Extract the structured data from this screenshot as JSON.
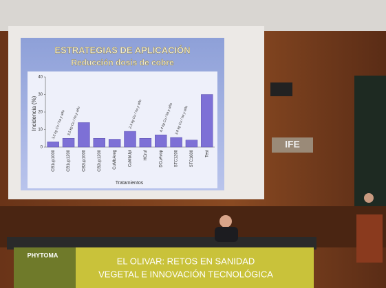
{
  "chart_data": {
    "type": "bar",
    "title": "ESTRATEGIAS DE APLICACIÓN",
    "subtitle": "Reducción dosis de cobre",
    "y_label": "Incidencia (%)",
    "x_label": "Tratamientos",
    "categories": [
      "CB1up1000",
      "CB1up1200",
      "CB2up1000",
      "CB2up1200",
      "CuMbAreg",
      "CuMbUpl",
      "HCruf",
      "DCuAvop",
      "STC1200",
      "STC1600",
      "Test"
    ],
    "values": [
      3,
      5,
      14,
      5,
      4.5,
      9,
      5,
      7,
      5.5,
      4,
      30
    ],
    "color": "#7d70d6",
    "ylim": [
      0,
      40
    ],
    "yticks": [
      0,
      10,
      20,
      30,
      40
    ],
    "annotations": [
      "3,5 kg Cu / ha y año",
      "3,5 kg Cu / ha y año",
      "2,3 kg Cu / ha y año",
      "4,4 kg Cu / ha y año",
      "3,8 kg Cu / ha y año"
    ]
  },
  "venue_sign": "IFE",
  "banner": {
    "logo": "PHYTOMA",
    "line1": "EL OLIVAR: RETOS EN SANIDAD",
    "line2": "VEGETAL E INNOVACIÓN TECNOLÓGICA"
  }
}
